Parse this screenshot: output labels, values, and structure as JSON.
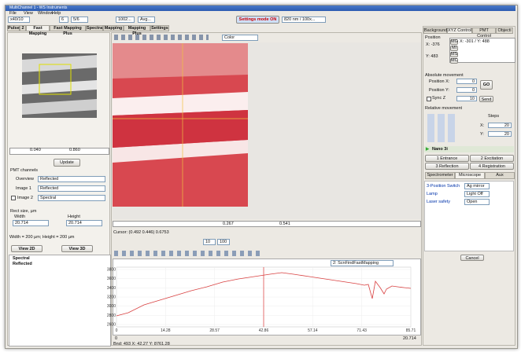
{
  "window": {
    "title": "MultiChannel 1 - WS Instruments",
    "menu": [
      "File",
      "View",
      "Window",
      "Help"
    ]
  },
  "toolbar": {
    "objective": "x40/10",
    "frames": "6",
    "step": "5/6",
    "points": "1002...",
    "mode": "Avg...",
    "settings_button": "Settings mode ON",
    "laser": "820 nm / 100x..."
  },
  "tabs": [
    "Pulse",
    "2",
    "Fast Mapping",
    "Fast Mapping Plus",
    "Spectra",
    "Mapping",
    "Mapping Plus",
    "Settings"
  ],
  "left_panel": {
    "slider_min": "0.040",
    "slider_max": "0.860",
    "update": "Update",
    "pmt_title": "PMT channels",
    "channels": [
      {
        "label": "Overview",
        "value": "Reflected"
      },
      {
        "label": "Image 1",
        "value": "Reflected"
      },
      {
        "label": "Image 2",
        "value": "Spectral"
      }
    ],
    "rect_title": "Rect size, µm",
    "width_label": "Width",
    "height_label": "Height",
    "width": "20.714",
    "height": "20.714",
    "size_note": "Width = 200 µm; Height = 200 µm",
    "view2d": "View 2D",
    "view3d": "View 3D",
    "tree": [
      "Spectral",
      "Reflected"
    ]
  },
  "image_view": {
    "palette": "Color",
    "slider_min": "0.267",
    "slider_max": "0.541",
    "cursor": "Cursor: (0.492 0.446) 0.6753",
    "zoom_min": "10",
    "zoom_max": "100"
  },
  "spectrum": {
    "source": "2: ScnFindFastMapping",
    "yticks": [
      "3800",
      "3600",
      "3400",
      "3200",
      "3000",
      "2800",
      "2600"
    ],
    "xticks": [
      "0",
      "14.28",
      "28.57",
      "42.86",
      "57.14",
      "71.43",
      "85.71"
    ],
    "range_min": "0",
    "range_max": "20.714",
    "status": "Bnd: 493 X: 42.27 Y: 8761.28"
  },
  "right_panel": {
    "tabs": [
      "Background",
      "XYZ Control",
      "PMT Control",
      "Objecti"
    ],
    "position_title": "Position",
    "pos_x": "X: -376",
    "pos_y": "Y: 483",
    "list_item": "X: -301 / Y: 488",
    "list_buttons": [
      "MG",
      "MI",
      "MS",
      "MC"
    ],
    "absolute_title": "Absolute movement",
    "position_x_label": "Position X:",
    "position_x": "0",
    "position_y_label": "Position Y:",
    "position_y": "0",
    "go": "GO",
    "sync_label": "Sync Z",
    "sync": "10",
    "send": "Send",
    "relative_title": "Relative movement",
    "steps_title": "Steps",
    "step_x_label": "X:",
    "step_x": "20",
    "step_y_label": "Y:",
    "step_y": "20",
    "device": "Nano 3i",
    "device_buttons": [
      "1 Entrance",
      "2 Excitation",
      "3 Reflection",
      "4 Registration"
    ],
    "device_tabs": [
      "Spectrometer",
      "Microscope",
      "Aux"
    ],
    "settings": [
      {
        "label": "3-Position Switch",
        "value": "Ag mirror"
      },
      {
        "label": "Lamp",
        "value": "Light Off"
      },
      {
        "label": "Laser safety",
        "value": "Open"
      }
    ],
    "cancel": "Cancel"
  }
}
